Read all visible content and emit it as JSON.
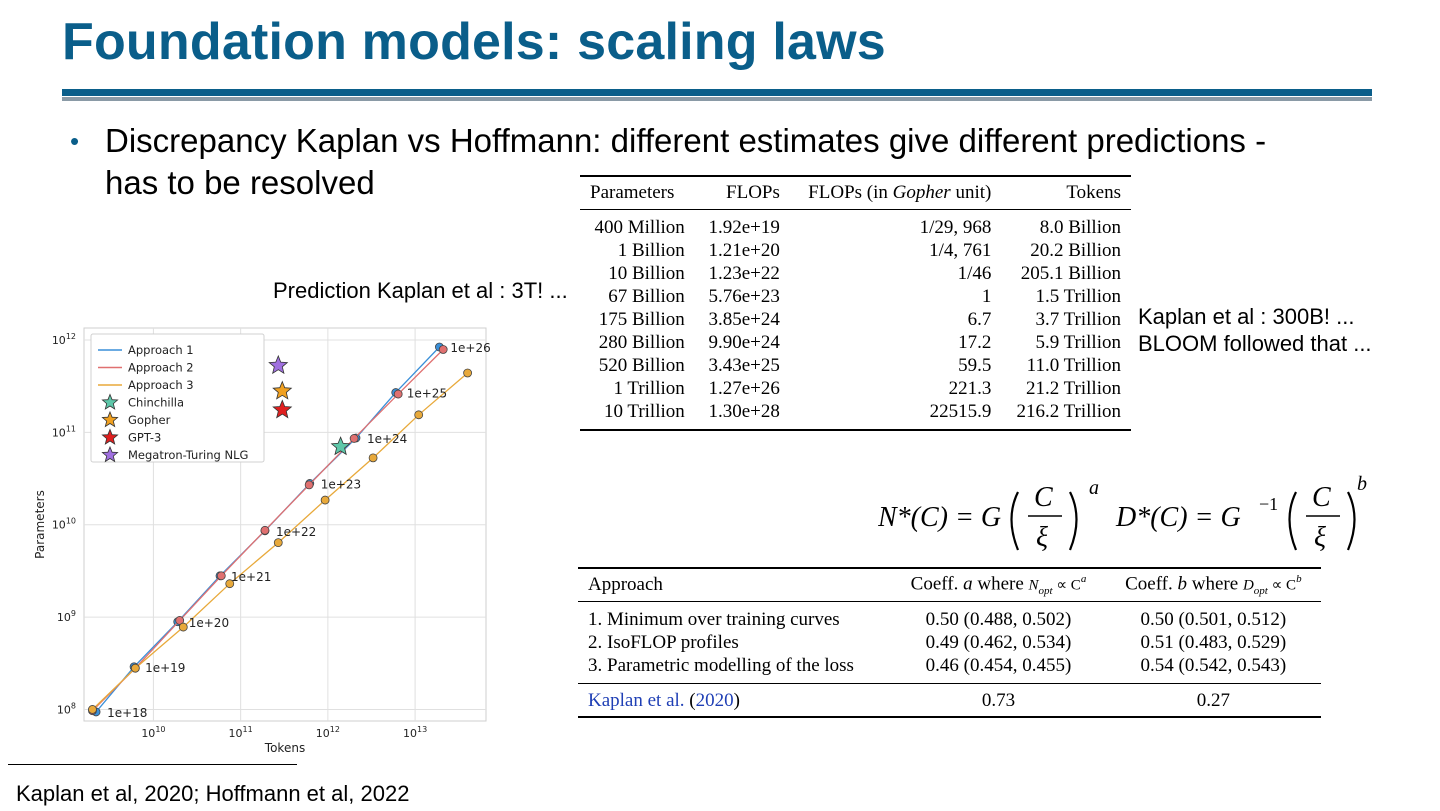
{
  "slide": {
    "title": "Foundation models: scaling laws",
    "bullet_line1": "Discrepancy Kaplan vs Hoffmann: different estimates give different predictions -",
    "bullet_line2": "has to be resolved",
    "note_prediction": "Prediction Kaplan et al : 3T! ...",
    "note_kaplan_line1": "Kaplan et al : 300B! ...",
    "note_kaplan_line2": "BLOOM followed that ...",
    "footnote": "Kaplan et al, 2020; Hoffmann et al, 2022",
    "colors": {
      "title": "#0a5e8a",
      "rule": "#0a5e8a",
      "link": "#1f3fb5"
    }
  },
  "table1": {
    "headers": [
      "Parameters",
      "FLOPs",
      "FLOPs (in ",
      "Gopher",
      " unit)",
      "Tokens"
    ],
    "rows": [
      [
        "400 Million",
        "1.92e+19",
        "1/29, 968",
        "8.0 Billion"
      ],
      [
        "1 Billion",
        "1.21e+20",
        "1/4, 761",
        "20.2 Billion"
      ],
      [
        "10 Billion",
        "1.23e+22",
        "1/46",
        "205.1 Billion"
      ],
      [
        "67 Billion",
        "5.76e+23",
        "1",
        "1.5 Trillion"
      ],
      [
        "175 Billion",
        "3.85e+24",
        "6.7",
        "3.7 Trillion"
      ],
      [
        "280 Billion",
        "9.90e+24",
        "17.2",
        "5.9 Trillion"
      ],
      [
        "520 Billion",
        "3.43e+25",
        "59.5",
        "11.0 Trillion"
      ],
      [
        "1 Trillion",
        "1.27e+26",
        "221.3",
        "21.2 Trillion"
      ],
      [
        "10 Trillion",
        "1.30e+28",
        "22515.9",
        "216.2 Trillion"
      ]
    ]
  },
  "formula": {
    "n_lhs": "N*(C) = G",
    "d_lhs": "D*(C) = G",
    "d_exp": "−1",
    "num": "C",
    "den": "ξ",
    "exp_a": "a",
    "exp_b": "b"
  },
  "table2": {
    "h_approach": "Approach",
    "h_coeff_a": "Coeff. ",
    "h_a": "a",
    "h_where": " where ",
    "h_nopt": "N",
    "h_opt": "opt",
    "h_prop": " ∝ C",
    "h_coeff_b": "Coeff. ",
    "h_b": "b",
    "h_dopt": "D",
    "rows": [
      [
        "1. Minimum over training curves",
        "0.50 (0.488, 0.502)",
        "0.50 (0.501, 0.512)"
      ],
      [
        "2. IsoFLOP profiles",
        "0.49 (0.462, 0.534)",
        "0.51 (0.483, 0.529)"
      ],
      [
        "3. Parametric modelling of the loss",
        "0.46 (0.454, 0.455)",
        "0.54 (0.542, 0.543)"
      ]
    ],
    "kaplan_name": "Kaplan et al.",
    "kaplan_year_open": " (",
    "kaplan_year": "2020",
    "kaplan_year_close": ")",
    "kaplan_a": "0.73",
    "kaplan_b": "0.27"
  },
  "chart_data": {
    "type": "line",
    "xlabel": "Tokens",
    "ylabel": "Parameters",
    "x_scale": "log",
    "y_scale": "log",
    "x_ticks": [
      "10^10",
      "10^11",
      "10^12",
      "10^13"
    ],
    "y_ticks": [
      "10^8",
      "10^9",
      "10^10",
      "10^11",
      "10^12"
    ],
    "grid": true,
    "legend_position": "top-left",
    "series": [
      {
        "name": "Approach 1",
        "color": "#3a8fd8",
        "points": [
          [
            2200000000.0,
            94000000.0
          ],
          [
            6000000000.0,
            290000000.0
          ],
          [
            19000000000.0,
            890000000.0
          ],
          [
            58000000000.0,
            2800000000.0
          ],
          [
            190000000000.0,
            8600000000.0
          ],
          [
            620000000000.0,
            28000000000.0
          ],
          [
            2100000000000.0,
            87000000000.0
          ],
          [
            6000000000000.0,
            270000000000.0
          ],
          [
            19000000000000.0,
            840000000000.0
          ]
        ]
      },
      {
        "name": "Approach 2",
        "color": "#e07070",
        "points": [
          [
            2000000000.0,
            97000000.0
          ],
          [
            6200000000.0,
            280000000.0
          ],
          [
            20000000000.0,
            920000000.0
          ],
          [
            60000000000.0,
            2800000000.0
          ],
          [
            190000000000.0,
            8700000000.0
          ],
          [
            610000000000.0,
            27000000000.0
          ],
          [
            2000000000000.0,
            86000000000.0
          ],
          [
            6400000000000.0,
            260000000000.0
          ],
          [
            21000000000000.0,
            790000000000.0
          ]
        ]
      },
      {
        "name": "Approach 3",
        "color": "#e8a93a",
        "points": [
          [
            2000000000.0,
            100000000.0
          ],
          [
            6200000000.0,
            280000000.0
          ],
          [
            22000000000.0,
            780000000.0
          ],
          [
            75000000000.0,
            2300000000.0
          ],
          [
            270000000000.0,
            6400000000.0
          ],
          [
            930000000000.0,
            18500000000.0
          ],
          [
            3300000000000.0,
            53000000000.0
          ],
          [
            11000000000000.0,
            155000000000.0
          ],
          [
            40000000000000.0,
            440000000000.0
          ]
        ]
      }
    ],
    "points": [
      {
        "name": "Chinchilla",
        "color": "#5ec7a9",
        "x": 1400000000000.0,
        "y": 70000000000.0
      },
      {
        "name": "Gopher",
        "color": "#f0a020",
        "x": 300000000000.0,
        "y": 280000000000.0
      },
      {
        "name": "GPT-3",
        "color": "#e02020",
        "x": 300000000000.0,
        "y": 175000000000.0
      },
      {
        "name": "Megatron-Turing NLG",
        "color": "#a070e0",
        "x": 270000000000.0,
        "y": 530000000000.0
      }
    ],
    "flop_labels": [
      {
        "label": "1e+18",
        "x": 2200000000.0,
        "y": 94000000.0
      },
      {
        "label": "1e+19",
        "x": 6000000000.0,
        "y": 290000000.0
      },
      {
        "label": "1e+20",
        "x": 19000000000.0,
        "y": 890000000.0
      },
      {
        "label": "1e+21",
        "x": 58000000000.0,
        "y": 2800000000.0
      },
      {
        "label": "1e+22",
        "x": 190000000000.0,
        "y": 8600000000.0
      },
      {
        "label": "1e+23",
        "x": 620000000000.0,
        "y": 28000000000.0
      },
      {
        "label": "1e+24",
        "x": 2100000000000.0,
        "y": 87000000000.0
      },
      {
        "label": "1e+25",
        "x": 6000000000000.0,
        "y": 270000000000.0
      },
      {
        "label": "1e+26",
        "x": 19000000000000.0,
        "y": 840000000000.0
      }
    ],
    "xlim": [
      1600000000.0,
      65000000000000.0
    ],
    "ylim": [
      75000000.0,
      1350000000000.0
    ]
  }
}
